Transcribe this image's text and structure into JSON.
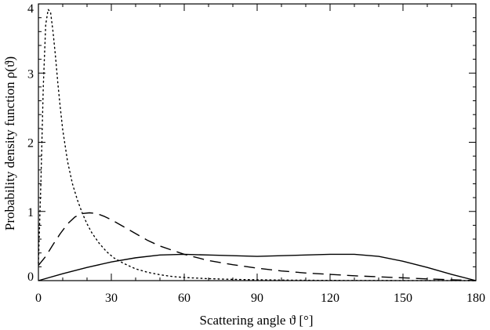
{
  "chart_data": {
    "type": "line",
    "title": "",
    "xlabel": "Scattering angle ϑ [°]",
    "ylabel": "Probability density function ρ(ϑ)",
    "xlim": [
      0,
      180
    ],
    "ylim": [
      0,
      4
    ],
    "xticks": [
      "0",
      "30",
      "60",
      "90",
      "120",
      "150",
      "180"
    ],
    "yticks": [
      "0",
      "1",
      "2",
      "3",
      "4"
    ],
    "grid": false,
    "legend": "none",
    "series": [
      {
        "style": "solid",
        "x": [
          0,
          10,
          20,
          30,
          40,
          50,
          60,
          70,
          80,
          90,
          100,
          110,
          120,
          130,
          140,
          150,
          160,
          170,
          180
        ],
        "y": [
          0.0,
          0.1,
          0.19,
          0.27,
          0.33,
          0.37,
          0.38,
          0.37,
          0.36,
          0.35,
          0.36,
          0.37,
          0.38,
          0.38,
          0.35,
          0.28,
          0.19,
          0.09,
          0.0
        ]
      },
      {
        "style": "dashed",
        "x": [
          0,
          3,
          6,
          9,
          12,
          15,
          18,
          21,
          24,
          27,
          30,
          35,
          40,
          45,
          50,
          60,
          70,
          80,
          90,
          100,
          110,
          120,
          130,
          140,
          150,
          160,
          170,
          180
        ],
        "y": [
          0.22,
          0.35,
          0.52,
          0.68,
          0.82,
          0.92,
          0.97,
          0.98,
          0.97,
          0.93,
          0.88,
          0.78,
          0.68,
          0.58,
          0.5,
          0.38,
          0.29,
          0.23,
          0.18,
          0.14,
          0.11,
          0.09,
          0.07,
          0.055,
          0.04,
          0.025,
          0.012,
          0.0
        ]
      },
      {
        "style": "dotted",
        "x": [
          0,
          1,
          2,
          3,
          4,
          5,
          6,
          7,
          8,
          9,
          10,
          12,
          14,
          16,
          18,
          20,
          22,
          25,
          28,
          31,
          35,
          40,
          45,
          50,
          55,
          60,
          70,
          80,
          90,
          100,
          110,
          120,
          135,
          150,
          165,
          180
        ],
        "y": [
          0.25,
          1.4,
          2.8,
          3.7,
          3.92,
          3.88,
          3.6,
          3.25,
          2.85,
          2.5,
          2.18,
          1.72,
          1.4,
          1.17,
          0.98,
          0.82,
          0.69,
          0.54,
          0.42,
          0.33,
          0.25,
          0.17,
          0.12,
          0.085,
          0.06,
          0.045,
          0.028,
          0.018,
          0.012,
          0.008,
          0.005,
          0.003,
          0.002,
          0.001,
          0.0005,
          0.0
        ]
      }
    ]
  }
}
